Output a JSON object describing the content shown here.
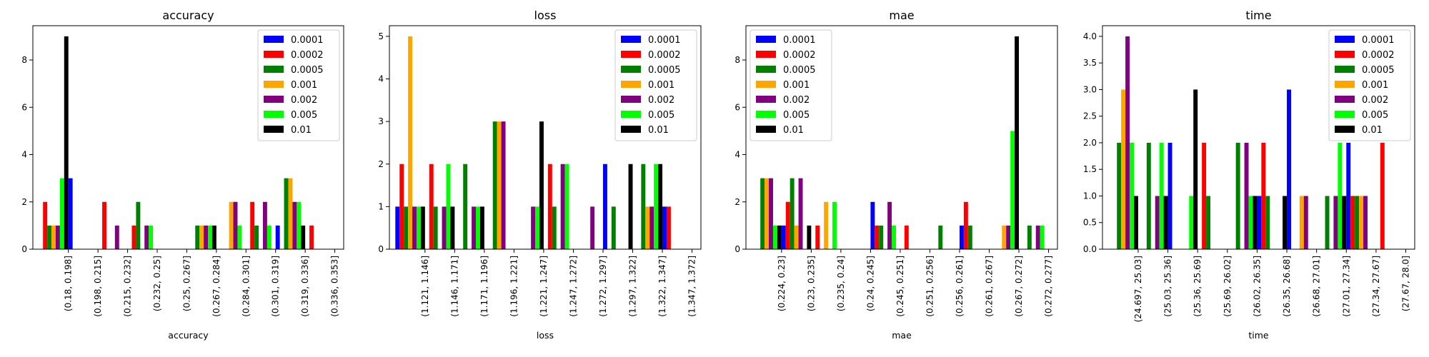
{
  "chart_data": [
    {
      "type": "bar",
      "title": "accuracy",
      "xlabel": "accuracy",
      "ylabel": "",
      "ylim": [
        0,
        9.45
      ],
      "yticks": [
        0,
        2,
        4,
        6,
        8
      ],
      "categories": [
        "(0.18, 0.198]",
        "(0.198, 0.215]",
        "(0.215, 0.232]",
        "(0.232, 0.25]",
        "(0.25, 0.267]",
        "(0.267, 0.284]",
        "(0.284, 0.301]",
        "(0.301, 0.319]",
        "(0.319, 0.336]",
        "(0.336, 0.353]"
      ],
      "legend": "top-right",
      "series": [
        {
          "name": "0.0001",
          "color": "#0000ff",
          "values": [
            0,
            3,
            0,
            0,
            0,
            0,
            0,
            0,
            1,
            0
          ]
        },
        {
          "name": "0.0002",
          "color": "#ff0000",
          "values": [
            2,
            0,
            2,
            1,
            0,
            0,
            0,
            2,
            0,
            1
          ]
        },
        {
          "name": "0.0005",
          "color": "#008000",
          "values": [
            1,
            0,
            0,
            2,
            0,
            1,
            0,
            1,
            3,
            0
          ]
        },
        {
          "name": "0.001",
          "color": "#ffa500",
          "values": [
            1,
            0,
            0,
            0,
            0,
            1,
            2,
            0,
            3,
            0
          ]
        },
        {
          "name": "0.002",
          "color": "#800080",
          "values": [
            1,
            0,
            1,
            1,
            0,
            1,
            2,
            2,
            2,
            0
          ]
        },
        {
          "name": "0.005",
          "color": "#00ff00",
          "values": [
            3,
            0,
            0,
            1,
            0,
            1,
            1,
            1,
            2,
            0
          ]
        },
        {
          "name": "0.01",
          "color": "#000000",
          "values": [
            9,
            0,
            0,
            0,
            0,
            1,
            0,
            0,
            1,
            0
          ]
        }
      ]
    },
    {
      "type": "bar",
      "title": "loss",
      "xlabel": "loss",
      "ylabel": "",
      "ylim": [
        0,
        5.25
      ],
      "yticks": [
        0,
        1,
        2,
        3,
        4,
        5
      ],
      "categories": [
        "(1.121, 1.146]",
        "(1.146, 1.171]",
        "(1.171, 1.196]",
        "(1.196, 1.221]",
        "(1.221, 1.247]",
        "(1.247, 1.272]",
        "(1.272, 1.297]",
        "(1.297, 1.322]",
        "(1.322, 1.347]",
        "(1.347, 1.372]"
      ],
      "legend": "top-right",
      "series": [
        {
          "name": "0.0001",
          "color": "#0000ff",
          "values": [
            1,
            0,
            0,
            0,
            0,
            0,
            0,
            2,
            0,
            1
          ]
        },
        {
          "name": "0.0002",
          "color": "#ff0000",
          "values": [
            2,
            2,
            0,
            0,
            0,
            2,
            0,
            0,
            0,
            1
          ]
        },
        {
          "name": "0.0005",
          "color": "#008000",
          "values": [
            1,
            1,
            2,
            3,
            0,
            1,
            0,
            1,
            2,
            0
          ]
        },
        {
          "name": "0.001",
          "color": "#ffa500",
          "values": [
            5,
            0,
            0,
            3,
            0,
            0,
            0,
            0,
            1,
            0
          ]
        },
        {
          "name": "0.002",
          "color": "#800080",
          "values": [
            1,
            1,
            1,
            3,
            1,
            2,
            1,
            0,
            1,
            0
          ]
        },
        {
          "name": "0.005",
          "color": "#00ff00",
          "values": [
            1,
            2,
            1,
            0,
            1,
            2,
            0,
            0,
            2,
            0
          ]
        },
        {
          "name": "0.01",
          "color": "#000000",
          "values": [
            1,
            1,
            1,
            0,
            3,
            0,
            0,
            2,
            2,
            0
          ]
        }
      ]
    },
    {
      "type": "bar",
      "title": "mae",
      "xlabel": "mae",
      "ylabel": "",
      "ylim": [
        0,
        9.45
      ],
      "yticks": [
        0,
        2,
        4,
        6,
        8
      ],
      "categories": [
        "(0.224, 0.23]",
        "(0.23, 0.235]",
        "(0.235, 0.24]",
        "(0.24, 0.245]",
        "(0.245, 0.251]",
        "(0.251, 0.256]",
        "(0.256, 0.261]",
        "(0.261, 0.267]",
        "(0.267, 0.272]",
        "(0.272, 0.277]"
      ],
      "legend": "top-left",
      "series": [
        {
          "name": "0.0001",
          "color": "#0000ff",
          "values": [
            0,
            1,
            0,
            0,
            2,
            0,
            0,
            1,
            0,
            0
          ]
        },
        {
          "name": "0.0002",
          "color": "#ff0000",
          "values": [
            0,
            2,
            1,
            0,
            1,
            1,
            0,
            2,
            0,
            0
          ]
        },
        {
          "name": "0.0005",
          "color": "#008000",
          "values": [
            3,
            3,
            0,
            0,
            1,
            0,
            1,
            1,
            0,
            1
          ]
        },
        {
          "name": "0.001",
          "color": "#ffa500",
          "values": [
            3,
            1,
            2,
            0,
            0,
            0,
            0,
            0,
            1,
            0
          ]
        },
        {
          "name": "0.002",
          "color": "#800080",
          "values": [
            3,
            3,
            0,
            0,
            2,
            0,
            0,
            0,
            1,
            1
          ]
        },
        {
          "name": "0.005",
          "color": "#00ff00",
          "values": [
            1,
            0,
            2,
            0,
            1,
            0,
            0,
            0,
            5,
            1
          ]
        },
        {
          "name": "0.01",
          "color": "#000000",
          "values": [
            1,
            1,
            0,
            0,
            0,
            0,
            0,
            0,
            9,
            0
          ]
        }
      ]
    },
    {
      "type": "bar",
      "title": "time",
      "xlabel": "time",
      "ylabel": "",
      "ylim": [
        0,
        4.2
      ],
      "yticks": [
        0.0,
        0.5,
        1.0,
        1.5,
        2.0,
        2.5,
        3.0,
        3.5,
        4.0
      ],
      "ytick_format": "0.0",
      "categories": [
        "(24.697, 25.03]",
        "(25.03, 25.36]",
        "(25.36, 25.69]",
        "(25.69, 26.02]",
        "(26.02, 26.35]",
        "(26.35, 26.68]",
        "(26.68, 27.01]",
        "(27.01, 27.34]",
        "(27.34, 27.67]",
        "(27.67, 28.0]"
      ],
      "legend": "top-right",
      "series": [
        {
          "name": "0.0001",
          "color": "#0000ff",
          "values": [
            0,
            0,
            2,
            0,
            0,
            1,
            3,
            0,
            2,
            0
          ]
        },
        {
          "name": "0.0002",
          "color": "#ff0000",
          "values": [
            0,
            0,
            0,
            2,
            0,
            2,
            0,
            0,
            1,
            2
          ]
        },
        {
          "name": "0.0005",
          "color": "#008000",
          "values": [
            2,
            2,
            0,
            1,
            2,
            1,
            0,
            1,
            1,
            0
          ]
        },
        {
          "name": "0.001",
          "color": "#ffa500",
          "values": [
            3,
            0,
            0,
            0,
            0,
            0,
            1,
            0,
            1,
            0
          ]
        },
        {
          "name": "0.002",
          "color": "#800080",
          "values": [
            4,
            1,
            0,
            0,
            2,
            0,
            1,
            1,
            1,
            0
          ]
        },
        {
          "name": "0.005",
          "color": "#00ff00",
          "values": [
            2,
            2,
            1,
            0,
            1,
            0,
            0,
            2,
            0,
            0
          ]
        },
        {
          "name": "0.01",
          "color": "#000000",
          "values": [
            1,
            1,
            3,
            0,
            1,
            1,
            0,
            1,
            0,
            0
          ]
        }
      ]
    }
  ]
}
